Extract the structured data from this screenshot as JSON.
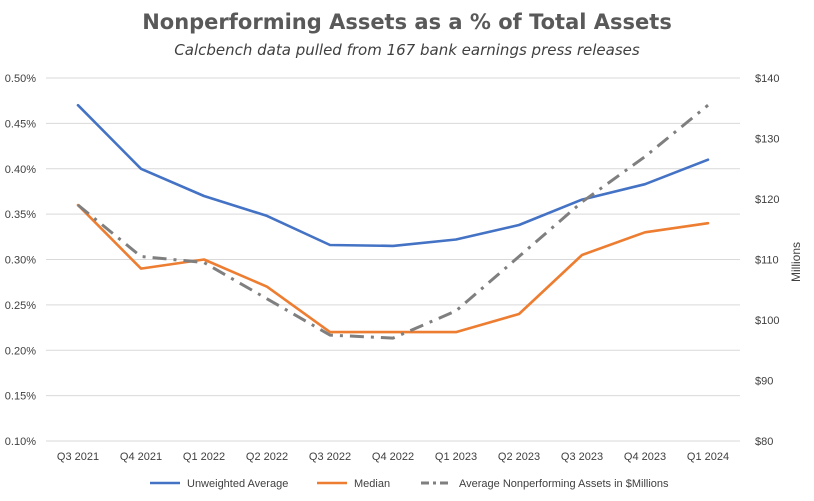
{
  "chart_data": {
    "type": "line",
    "title": "Nonperforming Assets as a % of Total Assets",
    "subtitle": "Calcbench data pulled from 167 bank earnings press releases",
    "categories": [
      "Q3 2021",
      "Q4 2021",
      "Q1 2022",
      "Q2 2022",
      "Q3 2022",
      "Q4 2022",
      "Q1 2023",
      "Q2 2023",
      "Q3 2023",
      "Q4 2023",
      "Q1 2024"
    ],
    "left_axis": {
      "ylim": [
        0.001,
        0.005
      ],
      "ticks": [
        0.001,
        0.0015,
        0.002,
        0.0025,
        0.003,
        0.0035,
        0.004,
        0.0045,
        0.005
      ],
      "tick_labels": [
        "0.10%",
        "0.15%",
        "0.20%",
        "0.25%",
        "0.30%",
        "0.35%",
        "0.40%",
        "0.45%",
        "0.50%"
      ]
    },
    "right_axis": {
      "label": "Millions",
      "ylim": [
        80,
        140
      ],
      "ticks": [
        80,
        90,
        100,
        110,
        120,
        130,
        140
      ],
      "tick_labels": [
        "$80",
        "$90",
        "$100",
        "$110",
        "$120",
        "$130",
        "$140"
      ]
    },
    "series": [
      {
        "name": "Unweighted Average",
        "axis": "left",
        "color": "#4472c4",
        "style": "solid",
        "values": [
          0.0047,
          0.004,
          0.0037,
          0.00348,
          0.00316,
          0.00315,
          0.00322,
          0.00338,
          0.00366,
          0.00383,
          0.0041
        ]
      },
      {
        "name": "Median",
        "axis": "left",
        "color": "#ed7d31",
        "style": "solid",
        "values": [
          0.0036,
          0.0029,
          0.003,
          0.0027,
          0.0022,
          0.0022,
          0.0022,
          0.0024,
          0.00305,
          0.0033,
          0.0034
        ]
      },
      {
        "name": "Average Nonperforming Assets in $Millions",
        "axis": "right",
        "color": "#7f7f7f",
        "style": "dash-dot",
        "values": [
          119,
          110.5,
          109.5,
          103.5,
          97.5,
          97,
          101.5,
          110.5,
          119.5,
          127,
          135.5
        ]
      }
    ],
    "legend_position": "bottom"
  }
}
